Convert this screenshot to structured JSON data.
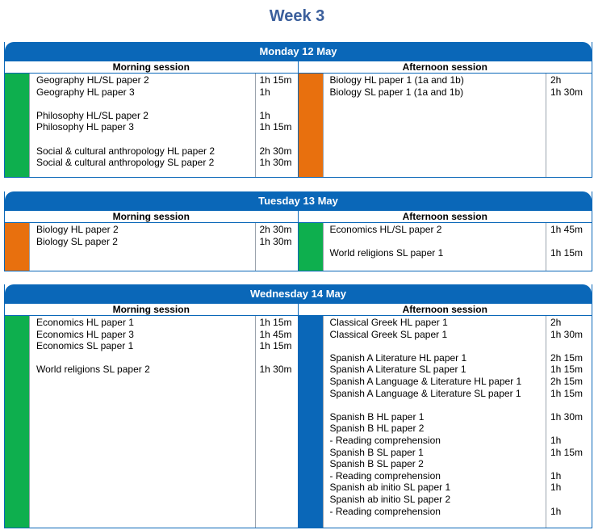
{
  "week_title": "Week 3",
  "days": [
    {
      "header": "Monday 12 May",
      "morning_label": "Morning session",
      "afternoon_label": "Afternoon session",
      "morning": [
        {
          "subject": "Geography HL/SL paper 2",
          "time": "1h 15m"
        },
        {
          "subject": "Geography HL paper 3",
          "time": "1h"
        },
        {
          "subject": "",
          "time": ""
        },
        {
          "subject": "Philosophy HL/SL paper 2",
          "time": "1h"
        },
        {
          "subject": "Philosophy HL paper 3",
          "time": "1h 15m"
        },
        {
          "subject": "",
          "time": ""
        },
        {
          "subject": "Social & cultural anthropology HL paper 2",
          "time": "2h 30m"
        },
        {
          "subject": "Social & cultural anthropology SL paper 2",
          "time": "1h 30m"
        }
      ],
      "afternoon": [
        {
          "subject": "Biology HL paper 1 (1a and 1b)",
          "time": "2h"
        },
        {
          "subject": "Biology SL paper 1 (1a and 1b)",
          "time": "1h 30m"
        }
      ],
      "morning_color": "#0eaf4e",
      "afternoon_color": "#e8700e"
    },
    {
      "header": "Tuesday 13 May",
      "morning_label": "Morning session",
      "afternoon_label": "Afternoon session",
      "morning": [
        {
          "subject": "Biology HL paper 2",
          "time": "2h 30m"
        },
        {
          "subject": "Biology SL paper 2",
          "time": "1h 30m"
        }
      ],
      "afternoon": [
        {
          "subject": "Economics HL/SL paper 2",
          "time": "1h 45m"
        },
        {
          "subject": "",
          "time": ""
        },
        {
          "subject": "World religions SL paper 1",
          "time": "1h 15m"
        }
      ],
      "morning_color": "#e8700e",
      "afternoon_color": "#0eaf4e"
    },
    {
      "header": "Wednesday 14 May",
      "morning_label": "Morning session",
      "afternoon_label": "Afternoon session",
      "morning": [
        {
          "subject": "Economics HL paper 1",
          "time": "1h 15m"
        },
        {
          "subject": "Economics HL paper 3",
          "time": "1h 45m"
        },
        {
          "subject": "Economics SL paper 1",
          "time": "1h 15m"
        },
        {
          "subject": "",
          "time": ""
        },
        {
          "subject": "World religions SL paper 2",
          "time": "1h 30m"
        }
      ],
      "afternoon": [
        {
          "subject": "Classical Greek HL paper 1",
          "time": "2h"
        },
        {
          "subject": "Classical Greek SL paper 1",
          "time": "1h 30m"
        },
        {
          "subject": "",
          "time": ""
        },
        {
          "subject": "Spanish A Literature HL paper 1",
          "time": "2h 15m"
        },
        {
          "subject": "Spanish A Literature SL paper 1",
          "time": "1h 15m"
        },
        {
          "subject": "Spanish A Language & Literature HL paper 1",
          "time": "2h 15m"
        },
        {
          "subject": "Spanish A Language & Literature SL paper 1",
          "time": "1h 15m"
        },
        {
          "subject": "",
          "time": ""
        },
        {
          "subject": "Spanish B HL paper 1",
          "time": "1h 30m"
        },
        {
          "subject": "Spanish B HL paper 2",
          "time": ""
        },
        {
          "subject": "- Reading comprehension",
          "time": "1h"
        },
        {
          "subject": "Spanish B SL paper 1",
          "time": "1h 15m"
        },
        {
          "subject": "Spanish B SL paper 2",
          "time": ""
        },
        {
          "subject": "- Reading comprehension",
          "time": "1h"
        },
        {
          "subject": "Spanish ab initio SL paper 1",
          "time": "1h"
        },
        {
          "subject": "Spanish ab initio SL paper 2",
          "time": ""
        },
        {
          "subject": "- Reading comprehension",
          "time": "1h"
        }
      ],
      "morning_color": "#0eaf4e",
      "afternoon_color": "#0a67b8"
    }
  ]
}
